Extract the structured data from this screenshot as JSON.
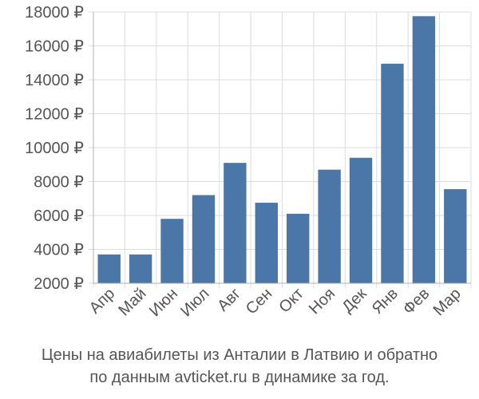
{
  "chart_data": {
    "type": "bar",
    "categories": [
      "Апр",
      "Май",
      "Июн",
      "Июл",
      "Авг",
      "Сен",
      "Окт",
      "Ноя",
      "Дек",
      "Янв",
      "Фев",
      "Мар"
    ],
    "values": [
      3700,
      3700,
      5800,
      7200,
      9100,
      6750,
      6100,
      8700,
      9400,
      14950,
      17750,
      7550
    ],
    "ylim": [
      2000,
      18000
    ],
    "yticks": [
      2000,
      4000,
      6000,
      8000,
      10000,
      12000,
      14000,
      16000,
      18000
    ],
    "ytick_labels": [
      "2000 ₽",
      "4000 ₽",
      "6000 ₽",
      "8000 ₽",
      "10000 ₽",
      "12000 ₽",
      "14000 ₽",
      "16000 ₽",
      "18000 ₽"
    ],
    "grid": true,
    "bar_color": "#4a76a8"
  },
  "caption": {
    "line1": "Цены на авиабилеты из Анталии в Латвию и обратно",
    "line2": "по данным avticket.ru в динамике за год."
  }
}
